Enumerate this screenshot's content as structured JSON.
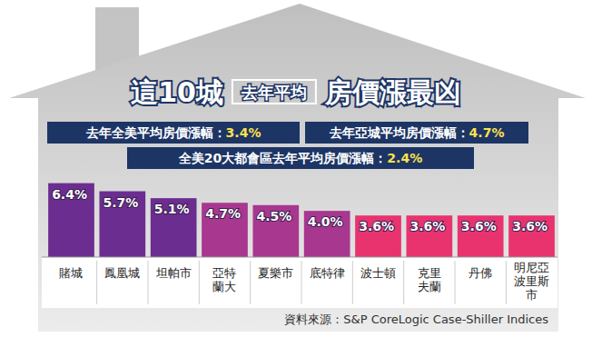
{
  "chart_data": {
    "type": "bar",
    "title": [
      "這10城",
      "去年平均",
      "房價漲最凶"
    ],
    "annotations": [
      "去年全美平均房價漲幅：3.4%",
      "去年亞城平均房價漲幅：4.7%",
      "全美20大都會區去年平均房價漲幅：2.4%"
    ],
    "source": "資料來源：S&P CoreLogic Case-Shiller Indices",
    "categories": [
      "賭城",
      "鳳凰城",
      "坦帕市",
      "亞特\n蘭大",
      "夏樂市",
      "底特律",
      "波士頓",
      "克里\n夫蘭",
      "丹佛",
      "明尼亞\n波里斯\n市"
    ],
    "values": [
      6.4,
      5.7,
      5.1,
      4.7,
      4.5,
      4.0,
      3.6,
      3.6,
      3.6,
      3.6
    ],
    "value_labels": [
      "6.4%",
      "5.7%",
      "5.1%",
      "4.7%",
      "4.5%",
      "4.0%",
      "3.6%",
      "3.6%",
      "3.6%",
      "3.6%"
    ],
    "colors": [
      "#6b2d8f",
      "#6b2d8f",
      "#6b2d8f",
      "#a8378f",
      "#a8378f",
      "#a8378f",
      "#e8336f",
      "#e8336f",
      "#e8336f",
      "#e8336f"
    ],
    "ylim": [
      0,
      7
    ],
    "data_labels": true,
    "tick_labels": "x"
  }
}
